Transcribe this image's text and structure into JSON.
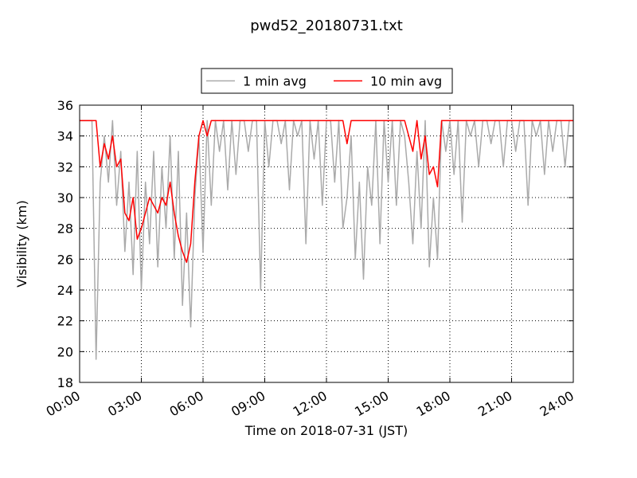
{
  "chart_data": {
    "type": "line",
    "title": "pwd52_20180731.txt",
    "xlabel": "Time on 2018-07-31 (JST)",
    "ylabel": "Visibility (km)",
    "x": [
      0,
      0.2,
      0.4,
      0.6,
      0.8,
      1,
      1.2,
      1.4,
      1.6,
      1.8,
      2,
      2.2,
      2.4,
      2.6,
      2.8,
      3,
      3.2,
      3.4,
      3.6,
      3.8,
      4,
      4.2,
      4.4,
      4.6,
      4.8,
      5,
      5.2,
      5.4,
      5.6,
      5.8,
      6,
      6.2,
      6.4,
      6.6,
      6.8,
      7,
      7.2,
      7.4,
      7.6,
      7.8,
      8,
      8.2,
      8.4,
      8.6,
      8.8,
      9,
      9.2,
      9.4,
      9.6,
      9.8,
      10,
      10.2,
      10.4,
      10.6,
      10.8,
      11,
      11.2,
      11.4,
      11.6,
      11.8,
      12,
      12.2,
      12.4,
      12.6,
      12.8,
      13,
      13.2,
      13.4,
      13.6,
      13.8,
      14,
      14.2,
      14.4,
      14.6,
      14.8,
      15,
      15.2,
      15.4,
      15.6,
      15.8,
      16,
      16.2,
      16.4,
      16.6,
      16.8,
      17,
      17.2,
      17.4,
      17.6,
      17.8,
      18,
      18.2,
      18.4,
      18.6,
      18.8,
      19,
      19.2,
      19.4,
      19.6,
      19.8,
      20,
      20.2,
      20.4,
      20.6,
      20.8,
      21,
      21.2,
      21.4,
      21.6,
      21.8,
      22,
      22.2,
      22.4,
      22.6,
      22.8,
      23,
      23.2,
      23.4,
      23.6,
      23.8,
      24
    ],
    "series": [
      {
        "name": "1 min avg",
        "color": "#aaaaaa",
        "values": [
          35,
          35,
          35,
          35,
          19.5,
          31,
          34,
          31,
          35,
          29.5,
          33,
          26.5,
          31,
          25,
          33,
          24,
          31,
          27,
          33,
          25.5,
          32,
          28,
          34,
          26,
          33,
          23,
          29,
          21.6,
          30,
          34,
          26.5,
          35,
          29.5,
          35,
          33,
          35,
          30.5,
          35,
          31.5,
          35,
          35,
          33,
          35,
          35,
          24,
          35,
          32,
          35,
          35,
          33.5,
          35,
          30.5,
          35,
          34,
          35,
          27,
          35,
          32.5,
          35,
          29.5,
          35,
          35,
          31,
          35,
          28,
          30,
          34,
          26,
          31,
          24.7,
          32,
          29.5,
          35,
          27,
          35,
          31,
          35,
          29.5,
          35,
          34,
          31,
          27,
          33,
          28,
          35,
          25.5,
          30,
          26,
          35,
          33,
          35,
          31.5,
          35,
          28.4,
          35,
          34,
          35,
          32,
          35,
          35,
          33.5,
          35,
          35,
          32,
          35,
          35,
          33,
          35,
          35,
          29.5,
          35,
          34,
          35,
          31.5,
          35,
          33,
          35,
          35,
          32,
          35,
          35
        ]
      },
      {
        "name": "10 min avg",
        "color": "#ff0000",
        "values": [
          35,
          35,
          35,
          35,
          35,
          32,
          33.5,
          32.5,
          34,
          32,
          32.5,
          29,
          28.5,
          30,
          27.3,
          28,
          29,
          30,
          29.5,
          29,
          30,
          29.5,
          31,
          29,
          27.5,
          26.5,
          25.8,
          27,
          31,
          34,
          35,
          34,
          35,
          35,
          35,
          35,
          35,
          35,
          35,
          35,
          35,
          35,
          35,
          35,
          35,
          35,
          35,
          35,
          35,
          35,
          35,
          35,
          35,
          35,
          35,
          35,
          35,
          35,
          35,
          35,
          35,
          35,
          35,
          35,
          35,
          33.5,
          35,
          35,
          35,
          35,
          35,
          35,
          35,
          35,
          35,
          35,
          35,
          35,
          35,
          35,
          34,
          33,
          35,
          32.5,
          34,
          31.5,
          32,
          30.7,
          35,
          35,
          35,
          35,
          35,
          35,
          35,
          35,
          35,
          35,
          35,
          35,
          35,
          35,
          35,
          35,
          35,
          35,
          35,
          35,
          35,
          35,
          35,
          35,
          35,
          35,
          35,
          35,
          35,
          35,
          35,
          35,
          35
        ]
      }
    ],
    "xlim": [
      0,
      24
    ],
    "xticks": [
      {
        "value": 0,
        "label": "00:00"
      },
      {
        "value": 3,
        "label": "03:00"
      },
      {
        "value": 6,
        "label": "06:00"
      },
      {
        "value": 9,
        "label": "09:00"
      },
      {
        "value": 12,
        "label": "12:00"
      },
      {
        "value": 15,
        "label": "15:00"
      },
      {
        "value": 18,
        "label": "18:00"
      },
      {
        "value": 21,
        "label": "21:00"
      },
      {
        "value": 24,
        "label": "24:00"
      }
    ],
    "ylim": [
      18,
      36
    ],
    "yticks": [
      18,
      20,
      22,
      24,
      26,
      28,
      30,
      32,
      34,
      36
    ],
    "grid": true,
    "legend": "upper center"
  }
}
